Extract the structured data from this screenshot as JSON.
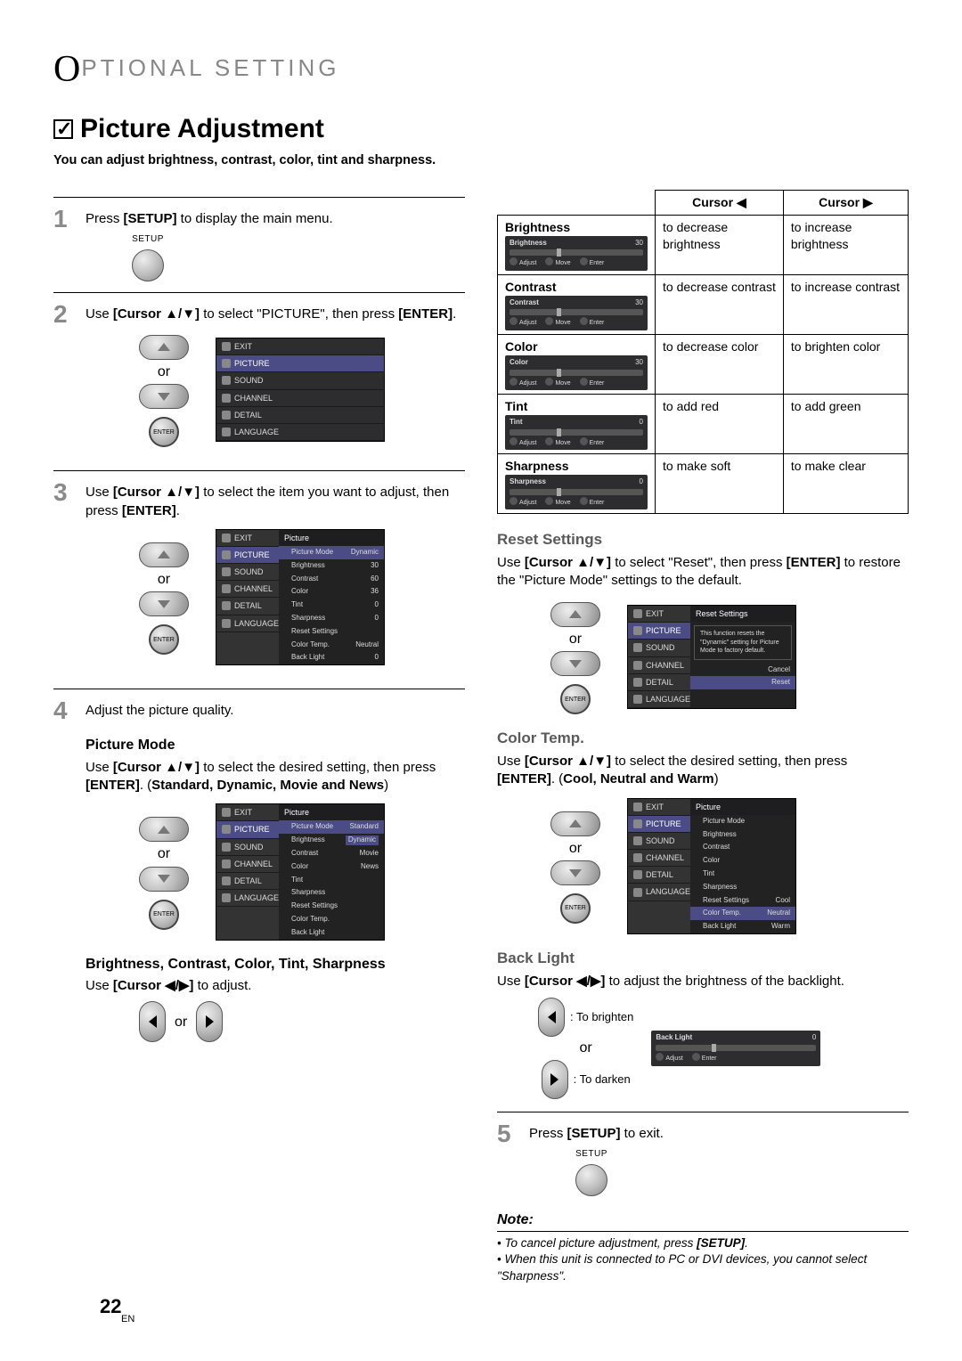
{
  "header": {
    "label": "PTIONAL SETTING"
  },
  "title": "Picture Adjustment",
  "subtitle": "You can adjust brightness, contrast, color, tint and sharpness.",
  "steps": {
    "s1": {
      "num": "1",
      "text_a": "Press ",
      "key": "[SETUP]",
      "text_b": " to display the main menu.",
      "btn_label": "SETUP"
    },
    "s2": {
      "num": "2",
      "text_a": "Use ",
      "key1": "[Cursor ▲/▼]",
      "text_b": " to select \"PICTURE\", then press ",
      "key2": "[ENTER]",
      "text_c": ".",
      "or": "or",
      "enter_label": "ENTER"
    },
    "s3": {
      "num": "3",
      "text_a": "Use ",
      "key1": "[Cursor ▲/▼]",
      "text_b": " to select the item you want to adjust, then press ",
      "key2": "[ENTER]",
      "text_c": ".",
      "or": "or",
      "enter_label": "ENTER"
    },
    "s4": {
      "num": "4",
      "text": "Adjust the picture quality."
    },
    "s5": {
      "num": "5",
      "text_a": "Press ",
      "key": "[SETUP]",
      "text_b": " to exit.",
      "btn_label": "SETUP"
    }
  },
  "osd_side_items": [
    "EXIT",
    "PICTURE",
    "SOUND",
    "CHANNEL",
    "DETAIL",
    "LANGUAGE"
  ],
  "osd_picture": {
    "title": "Picture",
    "rows": [
      {
        "l": "Picture Mode",
        "v": "Dynamic",
        "sel": true
      },
      {
        "l": "Brightness",
        "v": "30"
      },
      {
        "l": "Contrast",
        "v": "60"
      },
      {
        "l": "Color",
        "v": "36"
      },
      {
        "l": "Tint",
        "v": "0"
      },
      {
        "l": "Sharpness",
        "v": "0"
      },
      {
        "l": "Reset Settings",
        "v": ""
      },
      {
        "l": "Color Temp.",
        "v": "Neutral"
      },
      {
        "l": "Back Light",
        "v": "0"
      }
    ]
  },
  "picture_mode": {
    "head": "Picture Mode",
    "text_a": "Use ",
    "key1": "[Cursor ▲/▼]",
    "text_b": " to select the desired setting, then press ",
    "key2": "[ENTER]",
    "text_c": ". (",
    "opts": "Standard, Dynamic, Movie and News",
    "text_d": ")",
    "or": "or",
    "enter_label": "ENTER",
    "osd_rows": [
      {
        "l": "Picture Mode",
        "v": "Standard",
        "sel": true
      },
      {
        "l": "Brightness",
        "v": "Dynamic",
        "hl": true
      },
      {
        "l": "Contrast",
        "v": "Movie"
      },
      {
        "l": "Color",
        "v": "News"
      },
      {
        "l": "Tint",
        "v": ""
      },
      {
        "l": "Sharpness",
        "v": ""
      },
      {
        "l": "Reset Settings",
        "v": ""
      },
      {
        "l": "Color Temp.",
        "v": ""
      },
      {
        "l": "Back Light",
        "v": ""
      }
    ]
  },
  "bccth": {
    "head": "Brightness, Contrast, Color, Tint, Sharpness",
    "text_a": "Use ",
    "key": "[Cursor ◀/▶]",
    "text_b": " to adjust.",
    "or": "or"
  },
  "cursor_table": {
    "h_left": "Cursor ◀",
    "h_right": "Cursor ▶",
    "rows": [
      {
        "name": "Brightness",
        "val": "30",
        "left": "to decrease brightness",
        "right": "to increase brightness"
      },
      {
        "name": "Contrast",
        "val": "30",
        "left": "to decrease contrast",
        "right": "to increase contrast"
      },
      {
        "name": "Color",
        "val": "30",
        "left": "to decrease color",
        "right": "to brighten color"
      },
      {
        "name": "Tint",
        "val": "0",
        "left": "to add red",
        "right": "to add green"
      },
      {
        "name": "Sharpness",
        "val": "0",
        "left": "to make soft",
        "right": "to make clear"
      }
    ],
    "strip_labels": {
      "adjust": "Adjust",
      "move": "Move",
      "enter": "Enter"
    }
  },
  "reset": {
    "head": "Reset Settings",
    "text_a": "Use ",
    "key1": "[Cursor ▲/▼]",
    "text_b": " to select \"Reset\", then press ",
    "key2": "[ENTER]",
    "text_c": " to restore the \"Picture Mode\" settings to the default.",
    "or": "or",
    "enter_label": "ENTER",
    "osd_title": "Reset Settings",
    "osd_msg": "This function resets the \"Dynamic\" setting for Picture Mode to factory default.",
    "cancel": "Cancel",
    "reset_btn": "Reset"
  },
  "colortemp": {
    "head": "Color Temp.",
    "text_a": "Use ",
    "key1": "[Cursor ▲/▼]",
    "text_b": " to select the desired setting, then press ",
    "key2": "[ENTER]",
    "text_c": ". (",
    "opts": "Cool, Neutral and Warm",
    "text_d": ")",
    "or": "or",
    "enter_label": "ENTER",
    "osd_rows": [
      {
        "l": "Picture Mode",
        "v": ""
      },
      {
        "l": "Brightness",
        "v": ""
      },
      {
        "l": "Contrast",
        "v": ""
      },
      {
        "l": "Color",
        "v": ""
      },
      {
        "l": "Tint",
        "v": ""
      },
      {
        "l": "Sharpness",
        "v": ""
      },
      {
        "l": "Reset Settings",
        "v": "Cool"
      },
      {
        "l": "Color Temp.",
        "v": "Neutral",
        "sel": true
      },
      {
        "l": "Back Light",
        "v": "Warm"
      }
    ]
  },
  "backlight": {
    "head": "Back Light",
    "text_a": "Use ",
    "key": "[Cursor ◀/▶]",
    "text_b": " to adjust the brightness of the backlight.",
    "brighten": ": To brighten",
    "darken": ": To darken",
    "or": "or",
    "strip_name": "Back Light",
    "strip_val": "0",
    "adjust": "Adjust",
    "enter": "Enter"
  },
  "note": {
    "head": "Note:",
    "items": [
      "To cancel picture adjustment, press [SETUP].",
      "When this unit is connected to PC or DVI devices, you cannot select \"Sharpness\"."
    ]
  },
  "footer": {
    "page": "22",
    "lang": "EN"
  },
  "colors": {
    "osd_sel": "#4b4c85",
    "osd_bg": "#2d2d2f"
  }
}
